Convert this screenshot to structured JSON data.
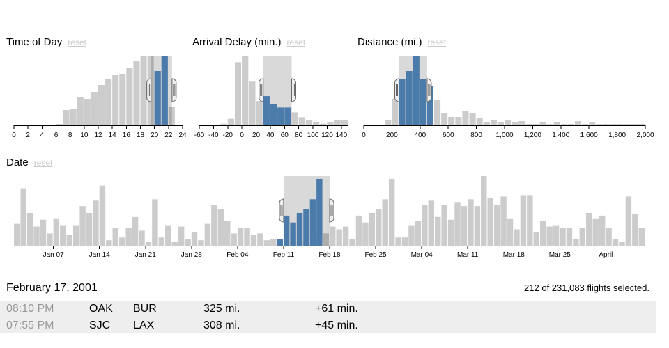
{
  "chart_data": [
    {
      "id": "hour",
      "type": "bar",
      "title": "Time of Day",
      "reset_label": "reset",
      "bin_start": 0,
      "bin_width": 1,
      "xlim": [
        0,
        24
      ],
      "ticks": [
        "0",
        "2",
        "4",
        "6",
        "8",
        "10",
        "12",
        "14",
        "16",
        "18",
        "20",
        "22",
        "24"
      ],
      "tick_values": [
        0,
        2,
        4,
        6,
        8,
        10,
        12,
        14,
        16,
        18,
        20,
        22,
        24
      ],
      "selection": [
        19.5,
        22.5
      ],
      "all_values": [
        0,
        0,
        0,
        0,
        0,
        0,
        2,
        22,
        24,
        40,
        38,
        48,
        58,
        66,
        72,
        74,
        82,
        92,
        100,
        100,
        78,
        100,
        26,
        0
      ],
      "selected_values": [
        0,
        0,
        0,
        0,
        0,
        0,
        0,
        0,
        0,
        0,
        0,
        0,
        0,
        0,
        0,
        0,
        0,
        0,
        0,
        0,
        78,
        100,
        0,
        0
      ]
    },
    {
      "id": "delay",
      "type": "bar",
      "title": "Arrival Delay (min.)",
      "reset_label": "reset",
      "bin_start": -60,
      "bin_width": 10,
      "xlim": [
        -60,
        150
      ],
      "ticks": [
        "-60",
        "-40",
        "-20",
        "0",
        "20",
        "40",
        "60",
        "80",
        "100",
        "120",
        "140"
      ],
      "tick_values": [
        -60,
        -40,
        -20,
        0,
        20,
        40,
        60,
        80,
        100,
        120,
        140
      ],
      "selection": [
        30,
        70
      ],
      "all_values": [
        0,
        0,
        0,
        2,
        8,
        78,
        86,
        54,
        30,
        36,
        26,
        22,
        22,
        16,
        10,
        6,
        4,
        2,
        4,
        6,
        6
      ],
      "selected_values": [
        0,
        0,
        0,
        0,
        0,
        0,
        0,
        0,
        0,
        36,
        26,
        22,
        22,
        0,
        0,
        0,
        0,
        0,
        0,
        0,
        0
      ]
    },
    {
      "id": "distance",
      "type": "bar",
      "title": "Distance (mi.)",
      "reset_label": "reset",
      "bin_start": 0,
      "bin_width": 50,
      "xlim": [
        0,
        2000
      ],
      "ticks": [
        "0",
        "200",
        "400",
        "600",
        "800",
        "1,000",
        "1,200",
        "1,400",
        "1,600",
        "1,800",
        "2,000"
      ],
      "tick_values": [
        0,
        200,
        400,
        600,
        800,
        1000,
        1200,
        1400,
        1600,
        1800,
        2000
      ],
      "selection": [
        250,
        450
      ],
      "all_values": [
        0,
        0,
        0,
        8,
        38,
        66,
        78,
        100,
        66,
        56,
        36,
        18,
        12,
        12,
        20,
        18,
        10,
        4,
        8,
        4,
        8,
        4,
        6,
        2,
        2,
        4,
        2,
        4,
        2,
        2,
        6,
        2,
        4,
        2,
        2,
        2,
        2,
        2,
        2,
        2
      ],
      "selected_values": [
        0,
        0,
        0,
        0,
        0,
        66,
        78,
        100,
        66,
        56,
        0,
        0,
        0,
        0,
        0,
        0,
        0,
        0,
        0,
        0,
        0,
        0,
        0,
        0,
        0,
        0,
        0,
        0,
        0,
        0,
        0,
        0,
        0,
        0,
        0,
        0,
        0,
        0,
        0,
        0
      ]
    },
    {
      "id": "date",
      "type": "bar",
      "title": "Date",
      "reset_label": "reset",
      "x_start": "2001-01-01",
      "x_end": "2001-04-01",
      "bin": "day",
      "ticks": [
        "Jan 07",
        "Jan 14",
        "Jan 21",
        "Jan 28",
        "Feb 04",
        "Feb 11",
        "Feb 18",
        "Feb 25",
        "Mar 04",
        "Mar 11",
        "Mar 18",
        "Mar 25",
        "April"
      ],
      "tick_values": [
        "2001-01-07",
        "2001-01-14",
        "2001-01-21",
        "2001-01-28",
        "2001-02-04",
        "2001-02-11",
        "2001-02-18",
        "2001-02-25",
        "2001-03-04",
        "2001-03-11",
        "2001-03-18",
        "2001-03-25",
        "2001-04-01"
      ],
      "selection": [
        "2001-02-11",
        "2001-02-18"
      ],
      "all_values": [
        32,
        84,
        48,
        28,
        38,
        18,
        40,
        30,
        16,
        30,
        58,
        48,
        66,
        88,
        8,
        26,
        12,
        26,
        42,
        22,
        6,
        68,
        12,
        30,
        6,
        28,
        10,
        20,
        8,
        32,
        60,
        54,
        36,
        18,
        26,
        26,
        16,
        18,
        8,
        10,
        8,
        8,
        22,
        6,
        6,
        6,
        14,
        18,
        28,
        24,
        28,
        10,
        44,
        34,
        48,
        54,
        68,
        98,
        12,
        12,
        30,
        36,
        60,
        66,
        42,
        60,
        38,
        64,
        58,
        68,
        58,
        102,
        70,
        60,
        72,
        40,
        24,
        74,
        74,
        20,
        36,
        28,
        30,
        26,
        26,
        10,
        26,
        48,
        40,
        44,
        26,
        10,
        6,
        72,
        46,
        26
      ],
      "selected_values": [
        0,
        0,
        0,
        0,
        0,
        0,
        0,
        0,
        0,
        0,
        0,
        0,
        0,
        0,
        0,
        0,
        0,
        0,
        0,
        0,
        0,
        0,
        0,
        0,
        0,
        0,
        0,
        0,
        0,
        0,
        0,
        0,
        0,
        0,
        0,
        0,
        0,
        0,
        0,
        0,
        10,
        44,
        34,
        48,
        54,
        68,
        98,
        0,
        0,
        0,
        0,
        0,
        0,
        0,
        0,
        0,
        0,
        0,
        0,
        0,
        0,
        0,
        0,
        0,
        0,
        0,
        0,
        0,
        0,
        0,
        0,
        0,
        0,
        0,
        0,
        0,
        0,
        0,
        0,
        0,
        0,
        0,
        0,
        0,
        0,
        0,
        0,
        0,
        0,
        0,
        0,
        0,
        0,
        0,
        0,
        0
      ]
    }
  ],
  "summary": {
    "date": "February 17, 2001",
    "count_text": "212 of 231,083 flights selected."
  },
  "flights": [
    {
      "time": "08:10 PM",
      "origin": "OAK",
      "destination": "BUR",
      "distance": "325 mi.",
      "delay": "+61 min."
    },
    {
      "time": "07:55 PM",
      "origin": "SJC",
      "destination": "LAX",
      "distance": "308 mi.",
      "delay": "+45 min."
    }
  ],
  "colors": {
    "background_bar": "#cccccc",
    "selected_bar": "#4a7bab",
    "reset_link": "#cccccc",
    "row_background": "#eeeeee",
    "time_text": "#999999"
  }
}
